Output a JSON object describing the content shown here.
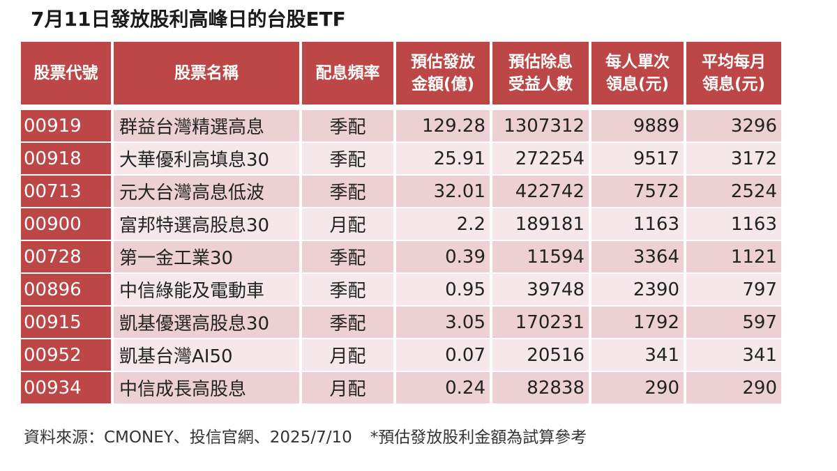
{
  "title": "7月11日發放股利高峰日的台股ETF",
  "table": {
    "headers": [
      "股票代號",
      "股票名稱",
      "配息頻率",
      "預估發放\n金額(億)",
      "預估除息\n受益人數",
      "每人單次\n領息(元)",
      "平均每月\n領息(元)"
    ],
    "rows": [
      {
        "code": "00919",
        "name": "群益台灣精選高息",
        "freq": "季配",
        "amount": "129.28",
        "holders": "1307312",
        "per_payout": "9889",
        "monthly_avg": "3296"
      },
      {
        "code": "00918",
        "name": "大華優利高填息30",
        "freq": "季配",
        "amount": "25.91",
        "holders": "272254",
        "per_payout": "9517",
        "monthly_avg": "3172"
      },
      {
        "code": "00713",
        "name": "元大台灣高息低波",
        "freq": "季配",
        "amount": "32.01",
        "holders": "422742",
        "per_payout": "7572",
        "monthly_avg": "2524"
      },
      {
        "code": "00900",
        "name": "富邦特選高股息30",
        "freq": "月配",
        "amount": "2.2",
        "holders": "189181",
        "per_payout": "1163",
        "monthly_avg": "1163"
      },
      {
        "code": "00728",
        "name": "第一金工業30",
        "freq": "季配",
        "amount": "0.39",
        "holders": "11594",
        "per_payout": "3364",
        "monthly_avg": "1121"
      },
      {
        "code": "00896",
        "name": "中信綠能及電動車",
        "freq": "季配",
        "amount": "0.95",
        "holders": "39748",
        "per_payout": "2390",
        "monthly_avg": "797"
      },
      {
        "code": "00915",
        "name": "凱基優選高股息30",
        "freq": "季配",
        "amount": "3.05",
        "holders": "170231",
        "per_payout": "1792",
        "monthly_avg": "597"
      },
      {
        "code": "00952",
        "name": "凱基台灣AI50",
        "freq": "月配",
        "amount": "0.07",
        "holders": "20516",
        "per_payout": "341",
        "monthly_avg": "341"
      },
      {
        "code": "00934",
        "name": "中信成長高股息",
        "freq": "月配",
        "amount": "0.24",
        "holders": "82838",
        "per_payout": "290",
        "monthly_avg": "290"
      }
    ]
  },
  "footnote": {
    "source": "資料來源：CMONEY、投信官網、2025/7/10",
    "note": "*預估發放股利金額為試算參考"
  },
  "colors": {
    "header_bg": "#bd4747",
    "row_odd": "#ecd0d3",
    "row_even": "#f6e8ea"
  }
}
